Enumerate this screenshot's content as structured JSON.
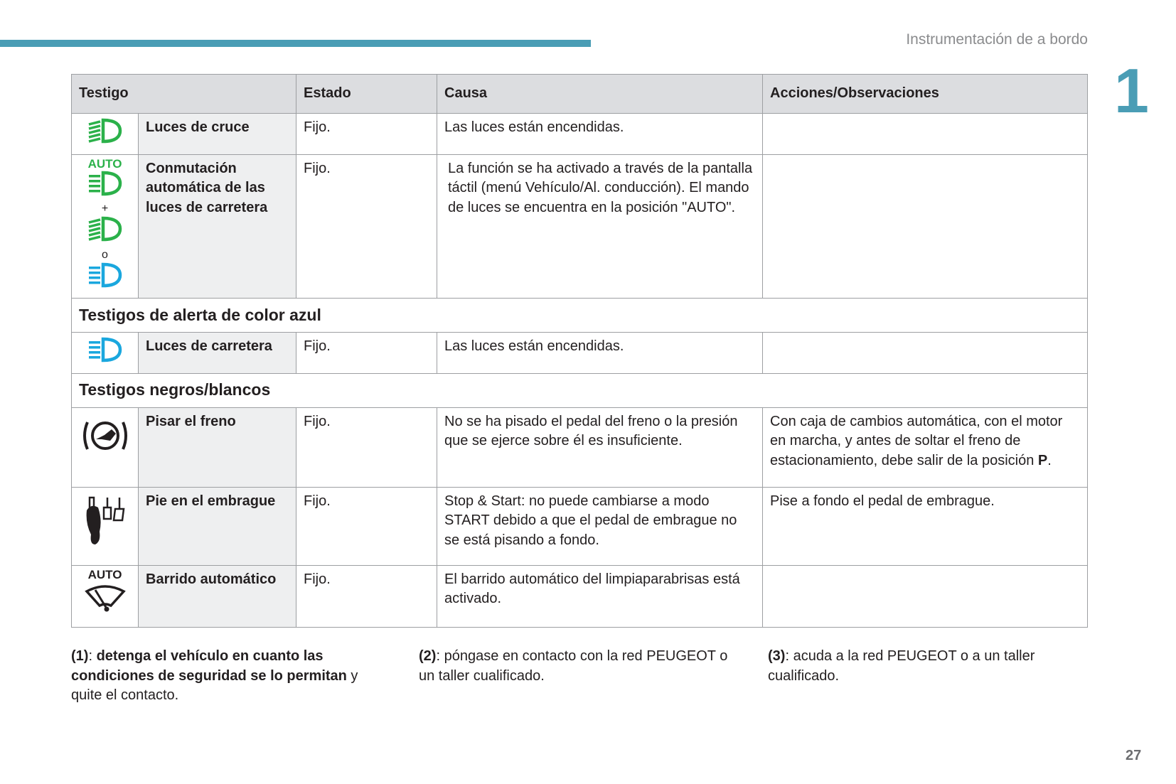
{
  "header": {
    "section_title": "Instrumentación de a bordo",
    "chapter": "1",
    "page": "27"
  },
  "colors": {
    "accent": "#4a9db5",
    "green": "#2bb14a",
    "blue": "#1aa7de"
  },
  "table": {
    "headers": [
      "Testigo",
      "Estado",
      "Causa",
      "Acciones/Observaciones"
    ],
    "rows": [
      {
        "icon": "low-beam-green-icon",
        "label": "Luces de cruce",
        "estado": "Fijo.",
        "causa": "Las luces están encendidas.",
        "acciones": ""
      },
      {
        "icon": "auto-high-beam-icons",
        "icon_texts": [
          "AUTO",
          "+",
          "o"
        ],
        "label": "Conmutación automática de las luces de carretera",
        "estado": "Fijo.",
        "causa": "La función se ha activado a través de la pantalla táctil (menú Vehículo/Al. conducción). El mando de luces se encuentra en la posición \"AUTO\".",
        "acciones": ""
      }
    ],
    "section_blue": "Testigos de alerta de color azul",
    "rows_blue": [
      {
        "icon": "high-beam-blue-icon",
        "label": "Luces de carretera",
        "estado": "Fijo.",
        "causa": "Las luces están encendidas.",
        "acciones": ""
      }
    ],
    "section_bw": "Testigos negros/blancos",
    "rows_bw": [
      {
        "icon": "brake-pedal-icon",
        "label": "Pisar el freno",
        "estado": "Fijo.",
        "causa": "No se ha pisado el pedal del freno o la presión que se ejerce sobre él es insuficiente.",
        "acciones": "Con caja de cambios automática, con el motor en marcha, y antes de soltar el freno de estacionamiento, debe salir de la posición ",
        "acciones_bold": "P",
        "acciones_end": "."
      },
      {
        "icon": "clutch-foot-icon",
        "label": "Pie en el embrague",
        "estado": "Fijo.",
        "causa": "Stop & Start: no puede cambiarse a modo START debido a que el pedal de embrague no se está pisando a fondo.",
        "acciones": "Pise a fondo el pedal de embrague."
      },
      {
        "icon": "auto-wiper-icon",
        "icon_text": "AUTO",
        "label": "Barrido automático",
        "estado": "Fijo.",
        "causa": "El barrido automático del limpiaparabrisas está activado.",
        "acciones": ""
      }
    ]
  },
  "notes": [
    {
      "ref": "(1)",
      "bold": "detenga el vehículo en cuanto las condiciones de seguridad se lo permitan",
      "text": " y quite el contacto."
    },
    {
      "ref": "(2)",
      "text": "póngase en contacto con la red PEUGEOT o un taller cualificado."
    },
    {
      "ref": "(3)",
      "text": "acuda a la red PEUGEOT o a un taller cualificado."
    }
  ]
}
